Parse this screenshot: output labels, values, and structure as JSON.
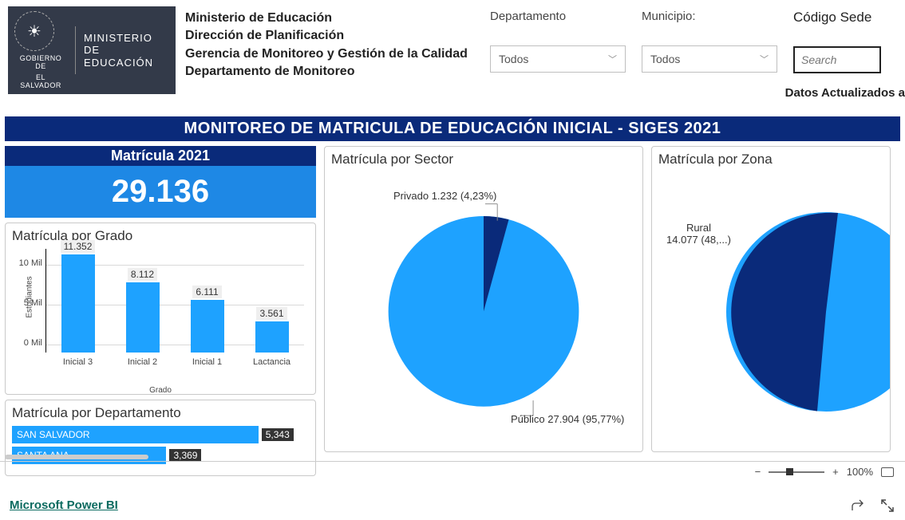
{
  "header": {
    "ministry_line1": "MINISTERIO",
    "ministry_line2": "DE EDUCACIÓN",
    "gov_line1": "GOBIERNO DE",
    "gov_line2": "EL SALVADOR",
    "org_lines": [
      "Ministerio de Educación",
      "Dirección de Planificación",
      "Gerencia de Monitoreo y Gestión de la Calidad",
      "Departamento de Monitoreo"
    ],
    "filter_departamento_label": "Departamento",
    "filter_municipio_label": "Municipio:",
    "filter_value_todos": "Todos",
    "search_label": "Código Sede",
    "search_placeholder": "Search",
    "datos_actualizados": "Datos Actualizados a"
  },
  "big_title": "MONITOREO DE MATRICULA DE EDUCACIÓN INICIAL - SIGES 2021",
  "kpi": {
    "title": "Matrícula 2021",
    "value": "29.136"
  },
  "grado_chart": {
    "type": "bar",
    "title": "Matrícula por Grado",
    "y_label": "Estudiantes",
    "x_label": "Grado",
    "y_ticks": [
      "0 Mil",
      "5 Mil",
      "10 Mil"
    ],
    "y_max": 12000,
    "categories": [
      "Inicial 3",
      "Inicial 2",
      "Inicial 1",
      "Lactancia"
    ],
    "value_labels": [
      "11.352",
      "8.112",
      "6.111",
      "3.561"
    ],
    "values": [
      11352,
      8112,
      6111,
      3561
    ],
    "bar_color": "#1ea2ff",
    "label_bg": "#efefef"
  },
  "dept_chart": {
    "type": "bar-horizontal",
    "title": "Matrícula por Departamento",
    "max": 5343,
    "bar_color": "#1ea2ff",
    "rows": [
      {
        "name": "SAN SALVADOR",
        "label": "5,343",
        "value": 5343,
        "width_pct": 83
      },
      {
        "name": "SANTA ANA",
        "label": "3,369",
        "value": 3369,
        "width_pct": 52
      }
    ]
  },
  "sector_chart": {
    "type": "pie",
    "title": "Matrícula por Sector",
    "slices": [
      {
        "label": "Privado 1.232 (4,23%)",
        "color": "#0a2a7a",
        "pct": 4.23
      },
      {
        "label": "Público 27.904 (95,77%)",
        "color": "#1ea2ff",
        "pct": 95.77
      }
    ]
  },
  "zona_chart": {
    "type": "pie",
    "title": "Matrícula por Zona",
    "slices": [
      {
        "label": "Rural",
        "sub": "14.077 (48,...)",
        "color": "#0a2a7a",
        "pct": 48
      },
      {
        "label": "",
        "color": "#1ea2ff",
        "pct": 52
      }
    ]
  },
  "zoom": {
    "minus": "−",
    "plus": "+",
    "pct": "100%"
  },
  "footer": {
    "powerbi": "Microsoft Power BI"
  }
}
